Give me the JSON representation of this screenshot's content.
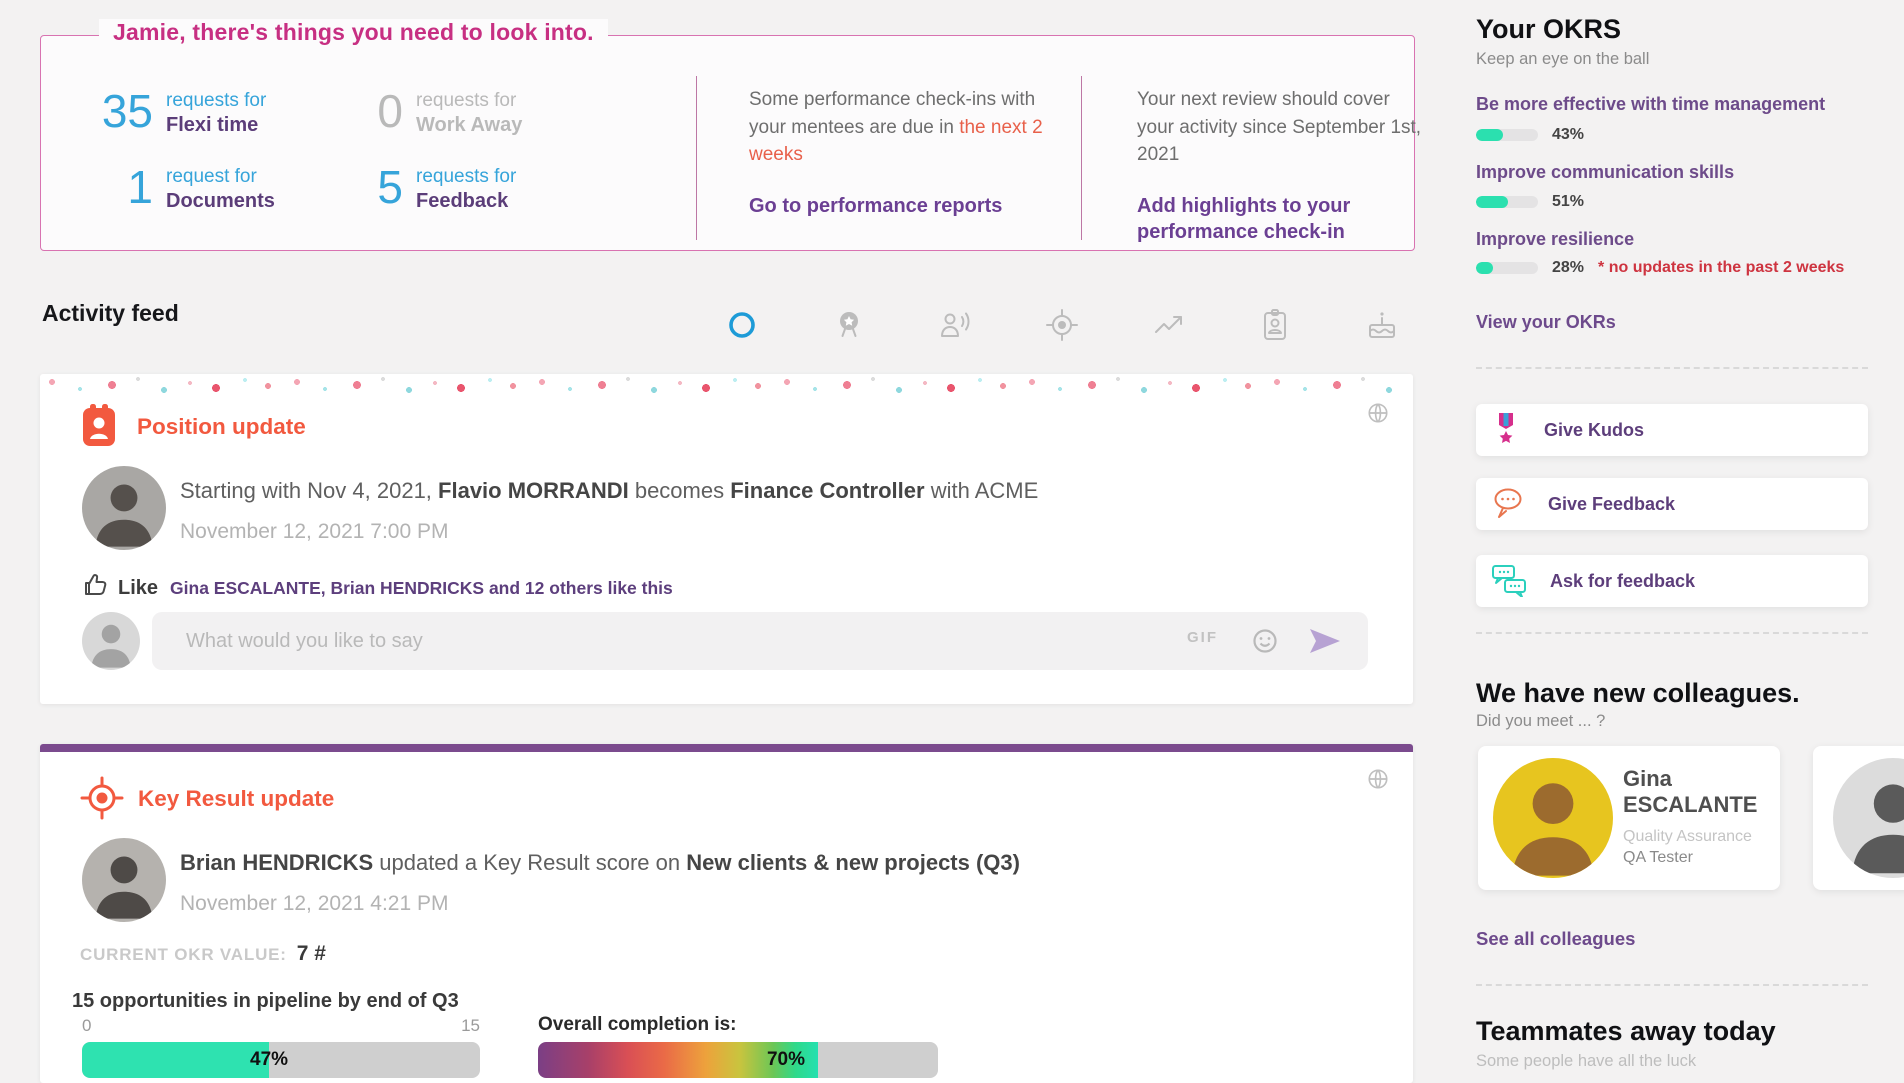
{
  "banner": {
    "title": "Jamie, there's things you need to look into.",
    "stats": [
      {
        "value": "35",
        "line1": "requests for",
        "line2": "Flexi time"
      },
      {
        "value": "0",
        "line1": "requests for",
        "line2": "Work Away"
      },
      {
        "value": "1",
        "line1": "request for",
        "line2": "Documents"
      },
      {
        "value": "5",
        "line1": "requests for",
        "line2": "Feedback"
      }
    ],
    "checkins": {
      "text": "Some performance check-ins with your mentees are due in",
      "highlight": "the next 2 weeks",
      "link": "Go to performance reports"
    },
    "review": {
      "text": "Your next review should cover your activity since September 1st, 2021",
      "link": "Add highlights to your performance check-in"
    }
  },
  "feed": {
    "heading": "Activity feed",
    "filters": [
      "all-circle-icon",
      "kudos-medal-icon",
      "announcement-person-icon",
      "okr-target-icon",
      "trend-up-icon",
      "position-badge-icon",
      "birthday-cake-icon"
    ],
    "position_card": {
      "title": "Position update",
      "t1": "Starting with Nov 4, 2021, ",
      "b1": "Flavio MORRANDI",
      "t2": " becomes ",
      "b2": "Finance Controller",
      "t3": " with ACME",
      "timestamp": "November 12, 2021  7:00 PM",
      "like_label": "Like",
      "likers": "Gina ESCALANTE, Brian HENDRICKS and 12 others like this",
      "comment_placeholder": "What would you like to say",
      "gif_label": "GIF"
    },
    "keyresult_card": {
      "title": "Key Result update",
      "b1": "Brian HENDRICKS",
      "t1": " updated a Key Result score on ",
      "b2": "New clients & new projects (Q3)",
      "timestamp": "November 12, 2021  4:21 PM",
      "okr_value_label": "CURRENT OKR VALUE:",
      "okr_value": "7 #",
      "kr_title": "15 opportunities in pipeline by end of Q3",
      "scale_min": "0",
      "scale_max": "15",
      "kr_pct": 47,
      "kr_pct_label": "47%",
      "overall_label": "Overall completion is:",
      "overall_pct": 70,
      "overall_pct_label": "70%"
    }
  },
  "sidebar": {
    "okrs": {
      "title": "Your OKRS",
      "subtitle": "Keep an eye on the ball",
      "items": [
        {
          "label": "Be more effective with time management",
          "pct": 43,
          "pct_label": "43%",
          "note": ""
        },
        {
          "label": "Improve communication skills",
          "pct": 51,
          "pct_label": "51%",
          "note": ""
        },
        {
          "label": "Improve resilience",
          "pct": 28,
          "pct_label": "28%",
          "note": "* no updates in the past 2 weeks"
        }
      ],
      "view_link": "View your OKRs"
    },
    "actions": [
      {
        "label": "Give Kudos",
        "icon": "kudos-medal-icon"
      },
      {
        "label": "Give Feedback",
        "icon": "feedback-bubble-icon"
      },
      {
        "label": "Ask for feedback",
        "icon": "ask-feedback-chat-icon"
      }
    ],
    "colleagues": {
      "title": "We have new colleagues.",
      "subtitle": "Did you meet ... ?",
      "card": {
        "first_name": "Gina",
        "last_name": "ESCALANTE",
        "dept": "Quality Assurance",
        "role": "QA Tester"
      },
      "link": "See all colleagues"
    },
    "away": {
      "title": "Teammates away today",
      "subtitle": "Some people have all the luck"
    }
  },
  "colors": {
    "accent_pink": "#c72f82",
    "accent_blue": "#36a4da",
    "accent_purple": "#6b3f93",
    "accent_orange": "#f2593f",
    "accent_teal": "#2ee2b0",
    "alert_red": "#ce3440"
  }
}
